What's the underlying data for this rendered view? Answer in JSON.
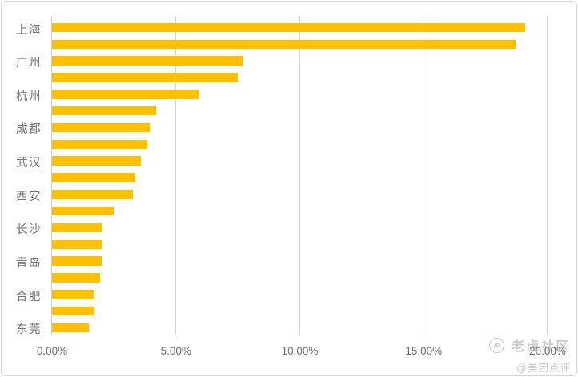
{
  "watermark": {
    "community": "老虎社区",
    "handle": "@美团点评",
    "logo_icon": "tiger-circle-icon"
  },
  "colors": {
    "bar": "#FFC000",
    "gridline": "#d9d9d9",
    "axis_line": "#cccccc",
    "tick_label": "#737373",
    "watermark": "#9aa0a8",
    "frame_border": "#d4d4dc",
    "background": "#ffffff"
  },
  "chart_data": {
    "type": "bar",
    "orientation": "horizontal",
    "title": "",
    "xlabel": "",
    "ylabel": "",
    "categories": [
      "上海",
      "",
      "广州",
      "",
      "杭州",
      "",
      "成都",
      "",
      "武汉",
      "",
      "西安",
      "",
      "长沙",
      "",
      "青岛",
      "",
      "合肥",
      "",
      "东莞"
    ],
    "values": [
      19.1,
      18.7,
      7.7,
      7.5,
      5.9,
      4.2,
      3.95,
      3.85,
      3.6,
      3.35,
      3.25,
      2.5,
      2.05,
      2.05,
      2.0,
      1.95,
      1.7,
      1.7,
      1.5
    ],
    "unit": "%",
    "xlim": [
      0,
      20
    ],
    "x_tick_values": [
      0,
      5,
      10,
      15,
      20
    ],
    "x_tick_labels": [
      "0.00%",
      "5.00%",
      "10.00%",
      "15.00%",
      "20.00%"
    ],
    "grid": "vertical",
    "legend": "none",
    "bar_color": "#FFC000"
  }
}
